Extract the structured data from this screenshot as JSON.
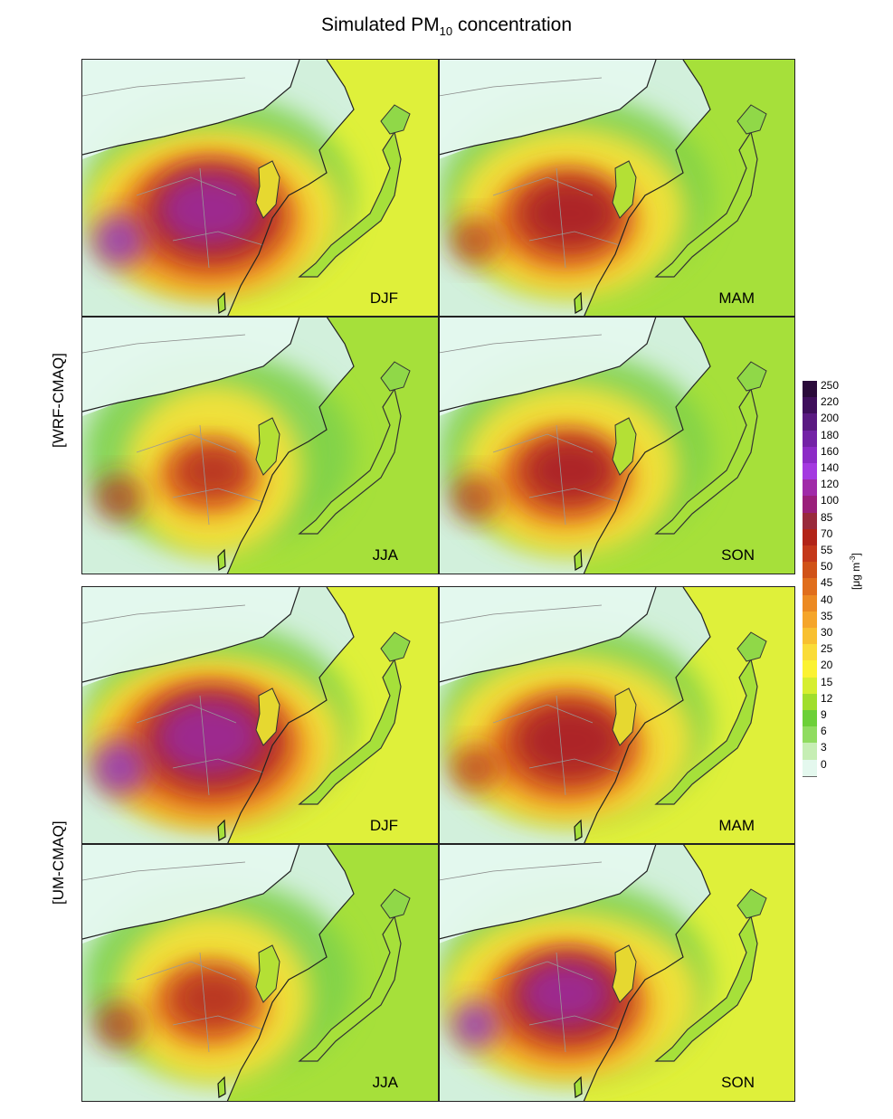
{
  "title": {
    "main": "Simulated PM",
    "sub": "10",
    "suffix": " concentration"
  },
  "row_labels": [
    "[WRF-CMAQ]",
    "[UM-CMAQ]"
  ],
  "panels": [
    {
      "model": "WRF-CMAQ",
      "season": "DJF",
      "intensity": 1.0
    },
    {
      "model": "WRF-CMAQ",
      "season": "MAM",
      "intensity": 0.78
    },
    {
      "model": "WRF-CMAQ",
      "season": "JJA",
      "intensity": 0.55
    },
    {
      "model": "WRF-CMAQ",
      "season": "SON",
      "intensity": 0.72
    },
    {
      "model": "UM-CMAQ",
      "season": "DJF",
      "intensity": 1.05
    },
    {
      "model": "UM-CMAQ",
      "season": "MAM",
      "intensity": 0.85
    },
    {
      "model": "UM-CMAQ",
      "season": "JJA",
      "intensity": 0.62
    },
    {
      "model": "UM-CMAQ",
      "season": "SON",
      "intensity": 0.9
    }
  ],
  "legend": {
    "unit_text": "[μg m",
    "unit_exp": "-3",
    "unit_close": "]",
    "levels": [
      "250",
      "220",
      "200",
      "180",
      "160",
      "140",
      "120",
      "100",
      "85",
      "70",
      "55",
      "50",
      "45",
      "40",
      "35",
      "30",
      "25",
      "20",
      "15",
      "12",
      "9",
      "6",
      "3",
      "0"
    ],
    "colors": [
      "#2a0a3a",
      "#3f0f5c",
      "#5a1a82",
      "#7322a6",
      "#8c2bc6",
      "#a43ae0",
      "#a02aa8",
      "#9a1f7a",
      "#992a3c",
      "#b22418",
      "#c4381a",
      "#d05218",
      "#e06e1c",
      "#ec8a22",
      "#f5a52a",
      "#f8c030",
      "#fadc38",
      "#fbf232",
      "#d6ee30",
      "#a0de2c",
      "#6cd038",
      "#90dc60",
      "#c6eeb4",
      "#e4f8ee"
    ]
  }
}
